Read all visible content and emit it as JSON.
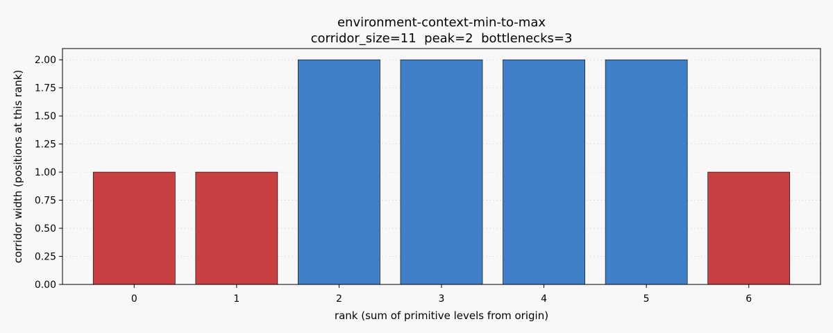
{
  "chart_data": {
    "type": "bar",
    "title": "environment-context-min-to-max",
    "subtitle": "corridor_size=11  peak=2  bottlenecks=3",
    "xlabel": "rank (sum of primitive levels from origin)",
    "ylabel": "corridor width (positions at this rank)",
    "categories": [
      "0",
      "1",
      "2",
      "3",
      "4",
      "5",
      "6"
    ],
    "values": [
      1,
      1,
      2,
      2,
      2,
      2,
      1
    ],
    "bar_status": [
      "bottleneck",
      "bottleneck",
      "normal",
      "normal",
      "normal",
      "normal",
      "bottleneck"
    ],
    "ylim": [
      0,
      2.1
    ],
    "yticks": [
      0.0,
      0.25,
      0.5,
      0.75,
      1.0,
      1.25,
      1.5,
      1.75,
      2.0
    ],
    "ytick_labels": [
      "0.00",
      "0.25",
      "0.50",
      "0.75",
      "1.00",
      "1.25",
      "1.50",
      "1.75",
      "2.00"
    ],
    "grid": "y-dotted",
    "colors": {
      "bottleneck": "#c84042",
      "normal": "#3f80c8",
      "edge": "#111111",
      "grid": "#dddddd",
      "background": "#f8f8f8"
    }
  }
}
